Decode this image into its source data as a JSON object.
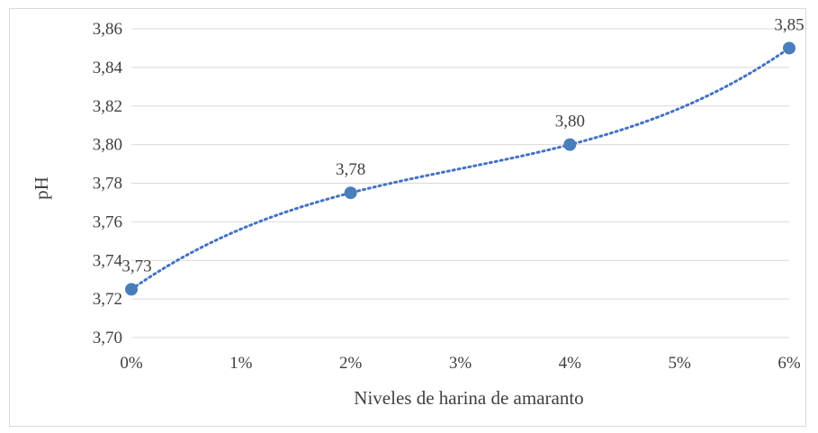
{
  "chart_data": {
    "type": "scatter",
    "title": "",
    "xlabel": "Niveles de harina de amaranto",
    "ylabel": "pH",
    "x_tick_labels": [
      "0%",
      "1%",
      "2%",
      "3%",
      "4%",
      "5%",
      "6%"
    ],
    "x_ticks": [
      0,
      1,
      2,
      3,
      4,
      5,
      6
    ],
    "y_tick_labels": [
      "3,70",
      "3,72",
      "3,74",
      "3,76",
      "3,78",
      "3,80",
      "3,82",
      "3,84",
      "3,86"
    ],
    "y_ticks": [
      3.7,
      3.72,
      3.74,
      3.76,
      3.78,
      3.8,
      3.82,
      3.84,
      3.86
    ],
    "xlim": [
      0,
      6
    ],
    "ylim": [
      3.7,
      3.86
    ],
    "grid": true,
    "trendline": "polynomial (dotted)",
    "series": [
      {
        "x": [
          0,
          2,
          4,
          6
        ],
        "y": [
          3.725,
          3.775,
          3.8,
          3.85
        ],
        "data_labels": [
          "3,73",
          "3,78",
          "3,80",
          "3,85"
        ]
      }
    ],
    "colors": {
      "marker": "#4a7ebb",
      "trend": "#4472c4",
      "grid": "#d9d9d9",
      "text": "#404040"
    }
  }
}
